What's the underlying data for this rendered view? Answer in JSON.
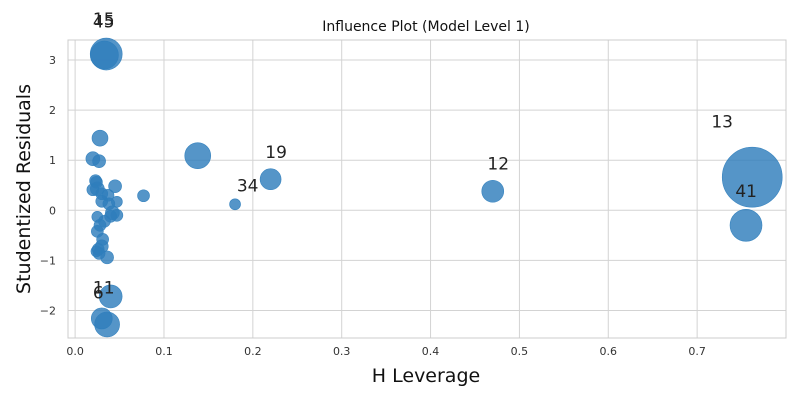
{
  "chart_data": {
    "type": "scatter",
    "title": "Influence Plot (Model Level 1)",
    "xlabel": "H Leverage",
    "ylabel": "Studentized Residuals",
    "xlim": [
      -0.008,
      0.8
    ],
    "ylim": [
      -2.55,
      3.4
    ],
    "x_ticks": [
      0.0,
      0.1,
      0.2,
      0.3,
      0.4,
      0.5,
      0.6,
      0.7
    ],
    "x_tick_labels": [
      "0.0",
      "0.1",
      "0.2",
      "0.3",
      "0.4",
      "0.5",
      "0.6",
      "0.7"
    ],
    "y_ticks": [
      -2,
      -1,
      0,
      1,
      2,
      3
    ],
    "y_tick_labels": [
      "−2",
      "−1",
      "0",
      "1",
      "2",
      "3"
    ],
    "grid": true,
    "marker_color": "#2f7ebc",
    "marker_opacity": 0.82,
    "marker_size_encoding": "Cook's distance (bubble area)",
    "points": [
      {
        "x": 0.762,
        "y": 0.66,
        "size": 30
      },
      {
        "x": 0.755,
        "y": -0.3,
        "size": 16
      },
      {
        "x": 0.47,
        "y": 0.38,
        "size": 11
      },
      {
        "x": 0.22,
        "y": 0.62,
        "size": 10.5
      },
      {
        "x": 0.138,
        "y": 1.09,
        "size": 13
      },
      {
        "x": 0.18,
        "y": 0.12,
        "size": 5.5
      },
      {
        "x": 0.035,
        "y": 3.12,
        "size": 16
      },
      {
        "x": 0.033,
        "y": 3.1,
        "size": 14
      },
      {
        "x": 0.036,
        "y": -2.28,
        "size": 12.5
      },
      {
        "x": 0.04,
        "y": -1.72,
        "size": 11.5
      },
      {
        "x": 0.03,
        "y": -2.16,
        "size": 10.5
      },
      {
        "x": 0.028,
        "y": 1.44,
        "size": 8
      },
      {
        "x": 0.02,
        "y": 1.03,
        "size": 7
      },
      {
        "x": 0.027,
        "y": 0.98,
        "size": 6.5
      },
      {
        "x": 0.023,
        "y": 0.59,
        "size": 6
      },
      {
        "x": 0.024,
        "y": 0.56,
        "size": 6
      },
      {
        "x": 0.045,
        "y": 0.48,
        "size": 6.5
      },
      {
        "x": 0.077,
        "y": 0.29,
        "size": 6
      },
      {
        "x": 0.02,
        "y": 0.41,
        "size": 6
      },
      {
        "x": 0.025,
        "y": 0.43,
        "size": 7
      },
      {
        "x": 0.03,
        "y": 0.33,
        "size": 6
      },
      {
        "x": 0.037,
        "y": 0.3,
        "size": 6
      },
      {
        "x": 0.03,
        "y": 0.18,
        "size": 6
      },
      {
        "x": 0.047,
        "y": 0.17,
        "size": 5.5
      },
      {
        "x": 0.038,
        "y": 0.13,
        "size": 6
      },
      {
        "x": 0.042,
        "y": -0.05,
        "size": 7
      },
      {
        "x": 0.047,
        "y": -0.1,
        "size": 6
      },
      {
        "x": 0.04,
        "y": -0.12,
        "size": 6
      },
      {
        "x": 0.025,
        "y": -0.13,
        "size": 5.5
      },
      {
        "x": 0.033,
        "y": -0.22,
        "size": 6
      },
      {
        "x": 0.028,
        "y": -0.3,
        "size": 6
      },
      {
        "x": 0.025,
        "y": -0.42,
        "size": 6
      },
      {
        "x": 0.031,
        "y": -0.58,
        "size": 6
      },
      {
        "x": 0.03,
        "y": -0.72,
        "size": 6.5
      },
      {
        "x": 0.026,
        "y": -0.78,
        "size": 6
      },
      {
        "x": 0.027,
        "y": -0.86,
        "size": 6
      },
      {
        "x": 0.036,
        "y": -0.94,
        "size": 6.5
      },
      {
        "x": 0.024,
        "y": -0.82,
        "size": 5.5
      }
    ],
    "annotations": [
      {
        "text": "13",
        "x": 0.716,
        "y": 1.65
      },
      {
        "text": "41",
        "x": 0.743,
        "y": 0.27
      },
      {
        "text": "12",
        "x": 0.464,
        "y": 0.81
      },
      {
        "text": "19",
        "x": 0.214,
        "y": 1.04
      },
      {
        "text": "34",
        "x": 0.182,
        "y": 0.38
      },
      {
        "text": "15",
        "x": 0.02,
        "y": 3.7
      },
      {
        "text": "45",
        "x": 0.02,
        "y": 3.65
      },
      {
        "text": "11",
        "x": 0.02,
        "y": -1.66
      },
      {
        "text": "6",
        "x": 0.02,
        "y": -1.76
      }
    ]
  }
}
